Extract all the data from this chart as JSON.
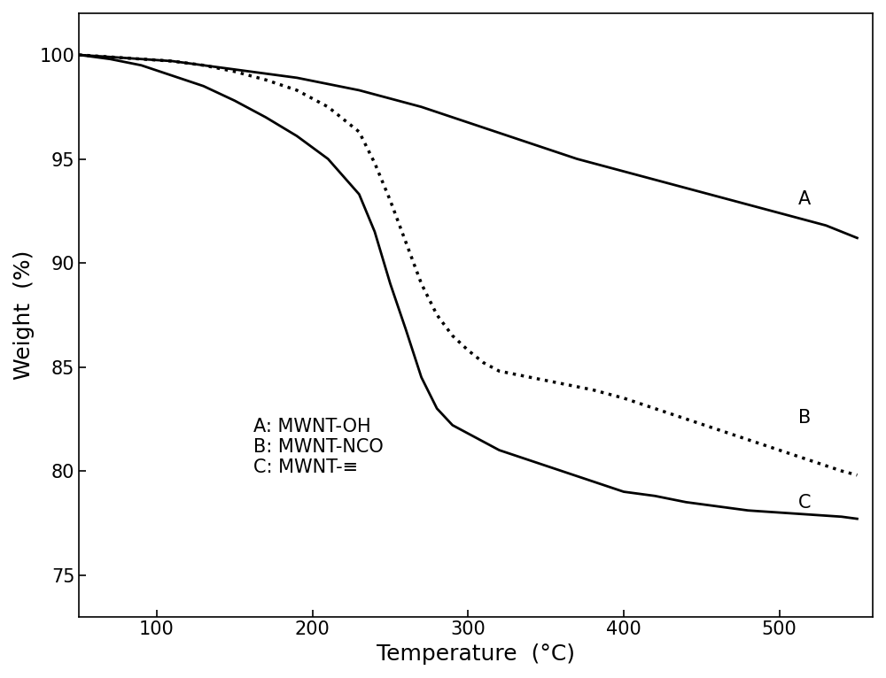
{
  "xlabel": "Temperature  (°C)",
  "ylabel": "Weight  (%)",
  "xlim": [
    50,
    560
  ],
  "ylim": [
    73,
    102
  ],
  "xticks": [
    100,
    200,
    300,
    400,
    500
  ],
  "yticks": [
    75,
    80,
    85,
    90,
    95,
    100
  ],
  "label_A": "A",
  "label_B": "B",
  "label_C": "C",
  "legend_lines": [
    "A: MWNT-OH",
    "B: MWNT-NCO",
    "C: MWNT-≡"
  ],
  "curve_A": {
    "x": [
      50,
      70,
      90,
      110,
      130,
      150,
      170,
      190,
      210,
      230,
      250,
      270,
      290,
      310,
      330,
      350,
      370,
      390,
      410,
      430,
      450,
      470,
      490,
      510,
      530,
      550
    ],
    "y": [
      100.0,
      99.9,
      99.8,
      99.7,
      99.5,
      99.3,
      99.1,
      98.9,
      98.6,
      98.3,
      97.9,
      97.5,
      97.0,
      96.5,
      96.0,
      95.5,
      95.0,
      94.6,
      94.2,
      93.8,
      93.4,
      93.0,
      92.6,
      92.2,
      91.8,
      91.2
    ]
  },
  "curve_B": {
    "x": [
      50,
      70,
      90,
      110,
      130,
      150,
      170,
      190,
      210,
      230,
      240,
      250,
      260,
      270,
      280,
      290,
      300,
      310,
      320,
      340,
      360,
      380,
      400,
      420,
      440,
      460,
      480,
      500,
      520,
      540,
      550
    ],
    "y": [
      100.0,
      99.9,
      99.8,
      99.7,
      99.5,
      99.2,
      98.8,
      98.3,
      97.5,
      96.3,
      94.8,
      93.0,
      91.0,
      89.0,
      87.5,
      86.5,
      85.8,
      85.2,
      84.8,
      84.5,
      84.2,
      83.9,
      83.5,
      83.0,
      82.5,
      82.0,
      81.5,
      81.0,
      80.5,
      80.0,
      79.8
    ]
  },
  "curve_C": {
    "x": [
      50,
      70,
      90,
      110,
      130,
      150,
      170,
      190,
      210,
      230,
      240,
      250,
      260,
      270,
      280,
      290,
      300,
      310,
      320,
      340,
      360,
      380,
      400,
      420,
      440,
      460,
      480,
      500,
      520,
      540,
      550
    ],
    "y": [
      100.0,
      99.8,
      99.5,
      99.0,
      98.5,
      97.8,
      97.0,
      96.1,
      95.0,
      93.3,
      91.5,
      89.0,
      86.8,
      84.5,
      83.0,
      82.2,
      81.8,
      81.4,
      81.0,
      80.5,
      80.0,
      79.5,
      79.0,
      78.8,
      78.5,
      78.3,
      78.1,
      78.0,
      77.9,
      77.8,
      77.7
    ]
  },
  "color": "#000000",
  "bg_color": "#ffffff",
  "fontsize_label": 18,
  "fontsize_tick": 15,
  "fontsize_legend": 15,
  "fontsize_annotation": 15
}
